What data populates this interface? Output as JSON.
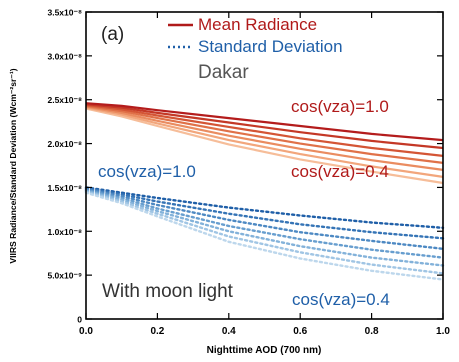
{
  "chart_data": {
    "type": "line",
    "panel_label": "(a)",
    "location": "Dakar",
    "condition_note": "With moon light",
    "xlabel": "Nighttime AOD (700 nm)",
    "ylabel": "VIIRS Radiance/Standard Deviation (Wcm⁻²sr⁻¹)",
    "xlim": [
      0.0,
      1.0
    ],
    "ylim": [
      0,
      3.5e-08
    ],
    "x_ticks": [
      {
        "value": 0.0,
        "label": "0.0"
      },
      {
        "value": 0.2,
        "label": "0.2"
      },
      {
        "value": 0.4,
        "label": "0.4"
      },
      {
        "value": 0.6,
        "label": "0.6"
      },
      {
        "value": 0.8,
        "label": "0.8"
      },
      {
        "value": 1.0,
        "label": "1.0"
      }
    ],
    "y_ticks": [
      {
        "value": 0,
        "label": "0"
      },
      {
        "value": 5e-09,
        "label": "5.0x10⁻⁹"
      },
      {
        "value": 1e-08,
        "label": "1.0x10⁻⁸"
      },
      {
        "value": 1.5e-08,
        "label": "1.5x10⁻⁸"
      },
      {
        "value": 2e-08,
        "label": "2.0x10⁻⁸"
      },
      {
        "value": 2.5e-08,
        "label": "2.5x10⁻⁸"
      },
      {
        "value": 3e-08,
        "label": "3.0x10⁻⁸"
      },
      {
        "value": 3.5e-08,
        "label": "3.5x10⁻⁸"
      }
    ],
    "grid": false,
    "legend": {
      "placement": "top-center",
      "entries": [
        {
          "label": "Mean Radiance",
          "style": "solid",
          "color": "#b01a1a"
        },
        {
          "label": "Standard Deviation",
          "style": "dotted",
          "color": "#1f5fa8"
        }
      ]
    },
    "annotations": {
      "radiance_top": "cos(vza)=1.0",
      "radiance_bottom": "cos(vza)=0.4",
      "std_top": "cos(vza)=1.0",
      "std_bottom": "cos(vza)=0.4"
    },
    "colors": {
      "radiance": [
        "#b41c1c",
        "#c43826",
        "#d45535",
        "#e07148",
        "#ea8c60",
        "#f2a67c",
        "#f6bd99"
      ],
      "std": [
        "#1f5fa8",
        "#3574b6",
        "#4d89c3",
        "#679ecf",
        "#83b2da",
        "#a0c5e4",
        "#bdd7ec"
      ]
    },
    "mean_radiance_series": [
      {
        "x": [
          0,
          0.1,
          0.2,
          0.4,
          0.6,
          0.8,
          1.0
        ],
        "y": [
          2.46e-08,
          2.43e-08,
          2.38e-08,
          2.29e-08,
          2.2e-08,
          2.11e-08,
          2.04e-08
        ]
      },
      {
        "x": [
          0,
          0.1,
          0.2,
          0.4,
          0.6,
          0.8,
          1.0
        ],
        "y": [
          2.45e-08,
          2.41e-08,
          2.35e-08,
          2.24e-08,
          2.13e-08,
          2.03e-08,
          1.95e-08
        ]
      },
      {
        "x": [
          0,
          0.1,
          0.2,
          0.4,
          0.6,
          0.8,
          1.0
        ],
        "y": [
          2.44e-08,
          2.39e-08,
          2.32e-08,
          2.19e-08,
          2.06e-08,
          1.95e-08,
          1.86e-08
        ]
      },
      {
        "x": [
          0,
          0.1,
          0.2,
          0.4,
          0.6,
          0.8,
          1.0
        ],
        "y": [
          2.43e-08,
          2.37e-08,
          2.29e-08,
          2.14e-08,
          2e-08,
          1.88e-08,
          1.78e-08
        ]
      },
      {
        "x": [
          0,
          0.1,
          0.2,
          0.4,
          0.6,
          0.8,
          1.0
        ],
        "y": [
          2.42e-08,
          2.35e-08,
          2.26e-08,
          2.09e-08,
          1.94e-08,
          1.81e-08,
          1.7e-08
        ]
      },
      {
        "x": [
          0,
          0.1,
          0.2,
          0.4,
          0.6,
          0.8,
          1.0
        ],
        "y": [
          2.41e-08,
          2.33e-08,
          2.23e-08,
          2.04e-08,
          1.88e-08,
          1.74e-08,
          1.62e-08
        ]
      },
      {
        "x": [
          0,
          0.1,
          0.2,
          0.4,
          0.6,
          0.8,
          1.0
        ],
        "y": [
          2.4e-08,
          2.31e-08,
          2.2e-08,
          1.99e-08,
          1.82e-08,
          1.68e-08,
          1.55e-08
        ]
      }
    ],
    "std_series": [
      {
        "x": [
          0,
          0.1,
          0.2,
          0.4,
          0.6,
          0.8,
          1.0
        ],
        "y": [
          1.5e-08,
          1.44e-08,
          1.38e-08,
          1.27e-08,
          1.18e-08,
          1.1e-08,
          1.04e-08
        ]
      },
      {
        "x": [
          0,
          0.1,
          0.2,
          0.4,
          0.6,
          0.8,
          1.0
        ],
        "y": [
          1.49e-08,
          1.42e-08,
          1.34e-08,
          1.2e-08,
          1.08e-08,
          9.9e-09,
          9.2e-09
        ]
      },
      {
        "x": [
          0,
          0.1,
          0.2,
          0.4,
          0.6,
          0.8,
          1.0
        ],
        "y": [
          1.48e-08,
          1.4e-08,
          1.3e-08,
          1.13e-08,
          9.9e-09,
          8.9e-09,
          8e-09
        ]
      },
      {
        "x": [
          0,
          0.1,
          0.2,
          0.4,
          0.6,
          0.8,
          1.0
        ],
        "y": [
          1.47e-08,
          1.38e-08,
          1.26e-08,
          1.06e-08,
          9.1e-09,
          7.9e-09,
          7e-09
        ]
      },
      {
        "x": [
          0,
          0.1,
          0.2,
          0.4,
          0.6,
          0.8,
          1.0
        ],
        "y": [
          1.46e-08,
          1.36e-08,
          1.23e-08,
          1e-08,
          8.3e-09,
          7e-09,
          6.1e-09
        ]
      },
      {
        "x": [
          0,
          0.1,
          0.2,
          0.4,
          0.6,
          0.8,
          1.0
        ],
        "y": [
          1.45e-08,
          1.34e-08,
          1.2e-08,
          9.4e-09,
          7.6e-09,
          6.2e-09,
          5.2e-09
        ]
      },
      {
        "x": [
          0,
          0.1,
          0.2,
          0.4,
          0.6,
          0.8,
          1.0
        ],
        "y": [
          1.44e-08,
          1.32e-08,
          1.17e-08,
          8.8e-09,
          6.9e-09,
          5.5e-09,
          4.5e-09
        ]
      }
    ]
  }
}
